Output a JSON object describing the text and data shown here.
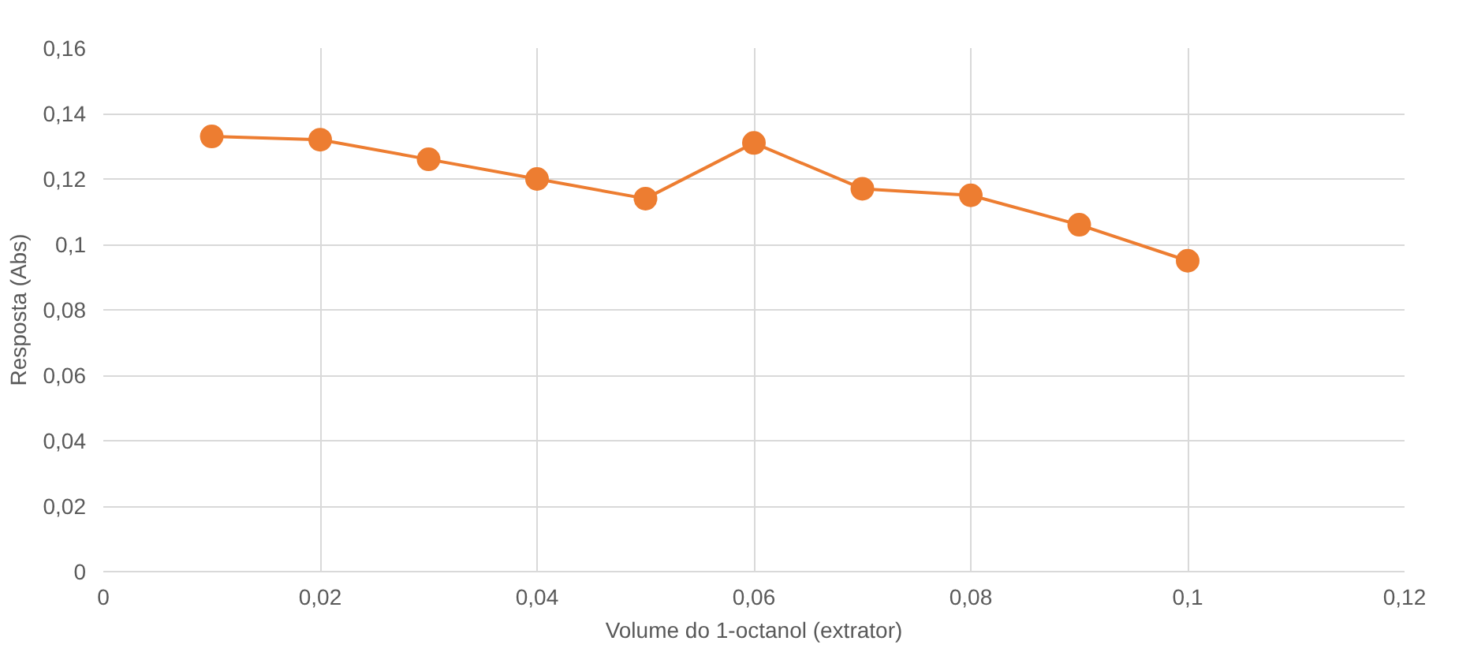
{
  "chart_data": {
    "type": "line",
    "xlabel": "Volume do 1-octanol (extrator)",
    "ylabel": "Resposta (Abs)",
    "x": [
      0.01,
      0.02,
      0.03,
      0.04,
      0.05,
      0.06,
      0.07,
      0.08,
      0.09,
      0.1
    ],
    "series": [
      {
        "color": "#ed7d31",
        "values": [
          0.133,
          0.132,
          0.126,
          0.12,
          0.114,
          0.131,
          0.117,
          0.115,
          0.106,
          0.095
        ]
      }
    ],
    "xlim": [
      0,
      0.12
    ],
    "ylim": [
      0,
      0.16
    ],
    "xticks": [
      0,
      {
        "value": 0.02,
        "label": "0,02"
      },
      {
        "value": 0.04,
        "label": "0,04"
      },
      {
        "value": 0.06,
        "label": "0,06"
      },
      {
        "value": 0.08,
        "label": "0,08"
      },
      {
        "value": 0.1,
        "label": "0,1"
      },
      {
        "value": 0.12,
        "label": "0,12"
      }
    ],
    "yticks": [
      0,
      {
        "value": 0.02,
        "label": "0,02"
      },
      {
        "value": 0.04,
        "label": "0,04"
      },
      {
        "value": 0.06,
        "label": "0,06"
      },
      {
        "value": 0.08,
        "label": "0,08"
      },
      {
        "value": 0.1,
        "label": "0,1"
      },
      {
        "value": 0.12,
        "label": "0,12"
      },
      {
        "value": 0.14,
        "label": "0,14"
      },
      {
        "value": 0.16,
        "label": "0,16"
      }
    ],
    "grid": true,
    "marker": "circle",
    "line_style": "solid"
  }
}
